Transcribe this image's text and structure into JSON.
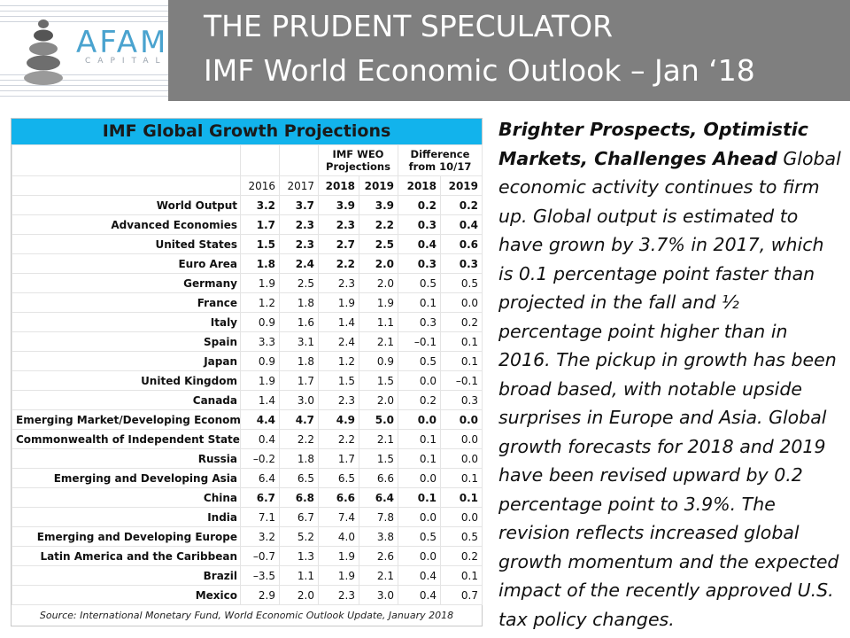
{
  "header": {
    "brand": "AFAM",
    "brand_sub": "CAPITAL",
    "title_line1": "THE PRUDENT SPECULATOR",
    "title_line2": "IMF World Economic Outlook – Jan ‘18",
    "colors": {
      "banner": "#7f7f7f",
      "brand": "#4aa3cf"
    }
  },
  "table": {
    "title": "IMF Global Growth Projections",
    "title_color": "#12b3ec",
    "group_headers": {
      "weo": "IMF WEO\nProjections",
      "weo_line1": "IMF WEO",
      "weo_line2": "Projections",
      "diff_line1": "Difference",
      "diff_line2": "from 10/17"
    },
    "years": [
      "2016",
      "2017",
      "2018",
      "2019",
      "2018",
      "2019"
    ],
    "rows": [
      {
        "label": "World Output",
        "values": [
          "3.2",
          "3.7",
          "3.9",
          "3.9",
          "0.2",
          "0.2"
        ],
        "bold": true
      },
      {
        "label": "Advanced Economies",
        "values": [
          "1.7",
          "2.3",
          "2.3",
          "2.2",
          "0.3",
          "0.4"
        ],
        "bold": true
      },
      {
        "label": "United States",
        "values": [
          "1.5",
          "2.3",
          "2.7",
          "2.5",
          "0.4",
          "0.6"
        ],
        "bold": true
      },
      {
        "label": "Euro Area",
        "values": [
          "1.8",
          "2.4",
          "2.2",
          "2.0",
          "0.3",
          "0.3"
        ],
        "bold": true
      },
      {
        "label": "Germany",
        "values": [
          "1.9",
          "2.5",
          "2.3",
          "2.0",
          "0.5",
          "0.5"
        ],
        "bold": false
      },
      {
        "label": "France",
        "values": [
          "1.2",
          "1.8",
          "1.9",
          "1.9",
          "0.1",
          "0.0"
        ],
        "bold": false
      },
      {
        "label": "Italy",
        "values": [
          "0.9",
          "1.6",
          "1.4",
          "1.1",
          "0.3",
          "0.2"
        ],
        "bold": false
      },
      {
        "label": "Spain",
        "values": [
          "3.3",
          "3.1",
          "2.4",
          "2.1",
          "–0.1",
          "0.1"
        ],
        "bold": false
      },
      {
        "label": "Japan",
        "values": [
          "0.9",
          "1.8",
          "1.2",
          "0.9",
          "0.5",
          "0.1"
        ],
        "bold": false
      },
      {
        "label": "United Kingdom",
        "values": [
          "1.9",
          "1.7",
          "1.5",
          "1.5",
          "0.0",
          "–0.1"
        ],
        "bold": false
      },
      {
        "label": "Canada",
        "values": [
          "1.4",
          "3.0",
          "2.3",
          "2.0",
          "0.2",
          "0.3"
        ],
        "bold": false
      },
      {
        "label": "Emerging Market/Developing Economies",
        "values": [
          "4.4",
          "4.7",
          "4.9",
          "5.0",
          "0.0",
          "0.0"
        ],
        "bold": true
      },
      {
        "label": "Commonwealth of Independent States",
        "values": [
          "0.4",
          "2.2",
          "2.2",
          "2.1",
          "0.1",
          "0.0"
        ],
        "bold": false
      },
      {
        "label": "Russia",
        "values": [
          "–0.2",
          "1.8",
          "1.7",
          "1.5",
          "0.1",
          "0.0"
        ],
        "bold": false
      },
      {
        "label": "Emerging and Developing Asia",
        "values": [
          "6.4",
          "6.5",
          "6.5",
          "6.6",
          "0.0",
          "0.1"
        ],
        "bold": false
      },
      {
        "label": "China",
        "values": [
          "6.7",
          "6.8",
          "6.6",
          "6.4",
          "0.1",
          "0.1"
        ],
        "bold": true
      },
      {
        "label": "India",
        "values": [
          "7.1",
          "6.7",
          "7.4",
          "7.8",
          "0.0",
          "0.0"
        ],
        "bold": false
      },
      {
        "label": "Emerging and Developing Europe",
        "values": [
          "3.2",
          "5.2",
          "4.0",
          "3.8",
          "0.5",
          "0.5"
        ],
        "bold": false
      },
      {
        "label": "Latin America and the Caribbean",
        "values": [
          "–0.7",
          "1.3",
          "1.9",
          "2.6",
          "0.0",
          "0.2"
        ],
        "bold": false
      },
      {
        "label": "Brazil",
        "values": [
          "–3.5",
          "1.1",
          "1.9",
          "2.1",
          "0.4",
          "0.1"
        ],
        "bold": false
      },
      {
        "label": "Mexico",
        "values": [
          "2.9",
          "2.0",
          "2.3",
          "3.0",
          "0.4",
          "0.7"
        ],
        "bold": false
      }
    ],
    "source": "Source: International Monetary Fund, World Economic Outlook Update, January 2018"
  },
  "commentary": {
    "heading": "Brighter Prospects, Optimistic Markets, Challenges Ahead",
    "body": "Global economic activity continues to firm up. Global output is estimated to have grown by 3.7% in 2017, which is 0.1 percentage point faster than projected in the fall and ½ percentage point higher than in 2016. The pickup in growth has been broad based, with notable upside surprises in Europe and Asia. Global growth forecasts for 2018 and 2019 have been revised upward by 0.2 percentage point to 3.9%. The revision reflects increased global growth momentum and the expected impact of the recently approved U.S. tax policy changes."
  }
}
